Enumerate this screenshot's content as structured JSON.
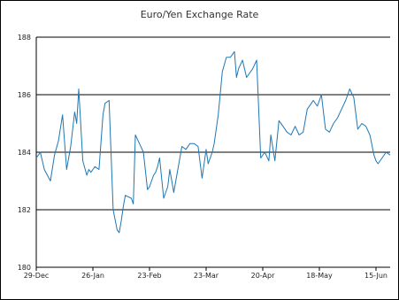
{
  "chart_data": {
    "type": "line",
    "title": "Euro/Yen Exchange Rate",
    "xlabel": "",
    "ylabel": "",
    "ylim": [
      180,
      188
    ],
    "yticks": [
      180,
      182,
      184,
      186,
      188
    ],
    "ytick_labels": [
      "180",
      "182",
      "184",
      "186",
      "188"
    ],
    "xlim": [
      "2014-12-29",
      "2015-06-22"
    ],
    "xticks": [
      "2014-12-29",
      "2015-01-26",
      "2015-02-23",
      "2015-03-23",
      "2015-04-20",
      "2015-05-18",
      "2015-06-15"
    ],
    "xtick_labels": [
      "29-Dec",
      "26-Jan",
      "23-Feb",
      "23-Mar",
      "20-Apr",
      "18-May",
      "15-Jun"
    ],
    "grid": "horizontal",
    "line_color": "#1f77b4",
    "series": [
      {
        "x": [
          "2014-12-29",
          "2014-12-31",
          "2015-01-02",
          "2015-01-05",
          "2015-01-07",
          "2015-01-09",
          "2015-01-11",
          "2015-01-13",
          "2015-01-15",
          "2015-01-17",
          "2015-01-18",
          "2015-01-19",
          "2015-01-21",
          "2015-01-23",
          "2015-01-24",
          "2015-01-25",
          "2015-01-26",
          "2015-01-27",
          "2015-01-29",
          "2015-01-31",
          "2015-02-01",
          "2015-02-03",
          "2015-02-05",
          "2015-02-07",
          "2015-02-08",
          "2015-02-09",
          "2015-02-10",
          "2015-02-11",
          "2015-02-14",
          "2015-02-15",
          "2015-02-16",
          "2015-02-18",
          "2015-02-20",
          "2015-02-22",
          "2015-02-23",
          "2015-02-25",
          "2015-02-26",
          "2015-02-27",
          "2015-02-28",
          "2015-03-02",
          "2015-03-04",
          "2015-03-05",
          "2015-03-07",
          "2015-03-09",
          "2015-03-11",
          "2015-03-13",
          "2015-03-15",
          "2015-03-17",
          "2015-03-19",
          "2015-03-21",
          "2015-03-23",
          "2015-03-24",
          "2015-03-26",
          "2015-03-27",
          "2015-03-29",
          "2015-03-31",
          "2015-04-02",
          "2015-04-04",
          "2015-04-06",
          "2015-04-07",
          "2015-04-08",
          "2015-04-10",
          "2015-04-12",
          "2015-04-14",
          "2015-04-15",
          "2015-04-17",
          "2015-04-19",
          "2015-04-21",
          "2015-04-23",
          "2015-04-24",
          "2015-04-26",
          "2015-04-28",
          "2015-04-30",
          "2015-05-02",
          "2015-05-04",
          "2015-05-06",
          "2015-05-08",
          "2015-05-10",
          "2015-05-12",
          "2015-05-14",
          "2015-05-15",
          "2015-05-17",
          "2015-05-19",
          "2015-05-21",
          "2015-05-23",
          "2015-05-25",
          "2015-05-27",
          "2015-05-29",
          "2015-05-31",
          "2015-06-02",
          "2015-06-04",
          "2015-06-06",
          "2015-06-08",
          "2015-06-10",
          "2015-06-12",
          "2015-06-14",
          "2015-06-15",
          "2015-06-16",
          "2015-06-18",
          "2015-06-20",
          "2015-06-22"
        ],
        "values": [
          183.8,
          184.0,
          183.4,
          183.0,
          183.9,
          184.4,
          185.3,
          183.4,
          184.2,
          185.4,
          185.0,
          186.2,
          183.7,
          183.2,
          183.4,
          183.3,
          183.4,
          183.5,
          183.4,
          185.3,
          185.7,
          185.8,
          182.0,
          181.3,
          181.2,
          181.6,
          182.1,
          182.5,
          182.4,
          182.2,
          184.6,
          184.3,
          184.0,
          182.7,
          182.8,
          183.2,
          183.3,
          183.5,
          183.8,
          182.4,
          182.8,
          183.4,
          182.6,
          183.4,
          184.2,
          184.1,
          184.3,
          184.3,
          184.2,
          183.1,
          184.1,
          183.6,
          184.0,
          184.3,
          185.3,
          186.8,
          187.3,
          187.3,
          187.5,
          186.6,
          186.9,
          187.2,
          186.6,
          186.8,
          186.9,
          187.2,
          183.8,
          184.0,
          183.7,
          184.6,
          183.7,
          185.1,
          184.9,
          184.7,
          184.6,
          184.9,
          184.6,
          184.7,
          185.5,
          185.7,
          185.8,
          185.6,
          186.0,
          184.8,
          184.7,
          185.0,
          185.2,
          185.5,
          185.8,
          186.2,
          185.9,
          184.8,
          185.0,
          184.9,
          184.6,
          183.9,
          183.7,
          183.6,
          183.8,
          184.0,
          183.9
        ]
      }
    ]
  }
}
